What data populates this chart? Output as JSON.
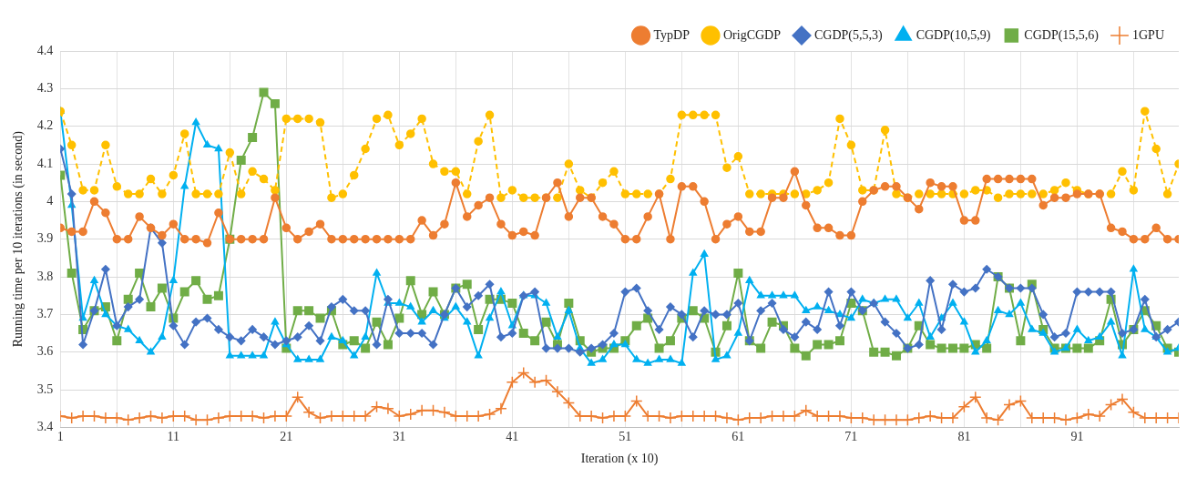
{
  "chart_data": {
    "type": "line",
    "xlabel": "Iteration (x 10)",
    "ylabel": "Running time per 10 iterations (in second)",
    "x": [
      1,
      2,
      3,
      4,
      5,
      6,
      7,
      8,
      9,
      10,
      11,
      12,
      13,
      14,
      15,
      16,
      17,
      18,
      19,
      20,
      21,
      22,
      23,
      24,
      25,
      26,
      27,
      28,
      29,
      30,
      31,
      32,
      33,
      34,
      35,
      36,
      37,
      38,
      39,
      40,
      41,
      42,
      43,
      44,
      45,
      46,
      47,
      48,
      49,
      50,
      51,
      52,
      53,
      54,
      55,
      56,
      57,
      58,
      59,
      60,
      61,
      62,
      63,
      64,
      65,
      66,
      67,
      68,
      69,
      70,
      71,
      72,
      73,
      74,
      75,
      76,
      77,
      78,
      79,
      80,
      81,
      82,
      83,
      84,
      85,
      86,
      87,
      88,
      89,
      90,
      91,
      92,
      93,
      94,
      95,
      96,
      97,
      98,
      99,
      100
    ],
    "xlim": [
      1,
      100
    ],
    "xticks": [
      1,
      {
        "value": 6,
        "label": null
      },
      11,
      {
        "value": 16,
        "label": null
      },
      21,
      {
        "value": 26,
        "label": null
      },
      31,
      {
        "value": 36,
        "label": null
      },
      41,
      {
        "value": 46,
        "label": null
      },
      51,
      {
        "value": 56,
        "label": null
      },
      61,
      {
        "value": 66,
        "label": null
      },
      71,
      {
        "value": 76,
        "label": null
      },
      81,
      {
        "value": 86,
        "label": null
      },
      91,
      {
        "value": 96,
        "label": null
      }
    ],
    "ylim": [
      3.4,
      4.4
    ],
    "yticks": [
      3.4,
      3.5,
      3.6,
      3.7,
      3.8,
      3.9,
      4,
      4.1,
      4.2,
      4.3,
      4.4
    ],
    "grid": true,
    "legend": "top right",
    "series": [
      {
        "name": "TypDP",
        "color": "#ed7d31",
        "marker": "circle",
        "line_style": "solid",
        "values": [
          3.93,
          3.92,
          3.92,
          4.0,
          3.97,
          3.9,
          3.9,
          3.96,
          3.93,
          3.91,
          3.94,
          3.9,
          3.9,
          3.89,
          3.97,
          3.9,
          3.9,
          3.9,
          3.9,
          4.01,
          3.93,
          3.9,
          3.92,
          3.94,
          3.9,
          3.9,
          3.9,
          3.9,
          3.9,
          3.9,
          3.9,
          3.9,
          3.95,
          3.91,
          3.94,
          4.05,
          3.96,
          3.99,
          4.01,
          3.94,
          3.91,
          3.92,
          3.91,
          4.01,
          4.05,
          3.96,
          4.01,
          4.01,
          3.96,
          3.94,
          3.9,
          3.9,
          3.96,
          4.02,
          3.9,
          4.04,
          4.04,
          4.0,
          3.9,
          3.94,
          3.96,
          3.92,
          3.92,
          4.01,
          4.01,
          4.08,
          3.99,
          3.93,
          3.93,
          3.91,
          3.91,
          4.0,
          4.03,
          4.04,
          4.04,
          4.01,
          3.98,
          4.05,
          4.04,
          4.04,
          3.95,
          3.95,
          4.06,
          4.06,
          4.06,
          4.06,
          4.06,
          3.99,
          4.01,
          4.01,
          4.02,
          4.02,
          4.02,
          3.93,
          3.92,
          3.9,
          3.9,
          3.93,
          3.9,
          3.9
        ]
      },
      {
        "name": "OrigCGDP",
        "color": "#ffc000",
        "marker": "circle",
        "line_style": "dashed",
        "values": [
          4.24,
          4.15,
          4.03,
          4.03,
          4.15,
          4.04,
          4.02,
          4.02,
          4.06,
          4.02,
          4.07,
          4.18,
          4.02,
          4.02,
          4.02,
          4.13,
          4.02,
          4.08,
          4.06,
          4.03,
          4.22,
          4.22,
          4.22,
          4.21,
          4.01,
          4.02,
          4.07,
          4.14,
          4.22,
          4.23,
          4.15,
          4.18,
          4.22,
          4.1,
          4.08,
          4.08,
          4.02,
          4.16,
          4.23,
          4.01,
          4.03,
          4.01,
          4.01,
          4.01,
          4.01,
          4.1,
          4.03,
          4.01,
          4.05,
          4.08,
          4.02,
          4.02,
          4.02,
          4.02,
          4.06,
          4.23,
          4.23,
          4.23,
          4.23,
          4.09,
          4.12,
          4.02,
          4.02,
          4.02,
          4.02,
          4.02,
          4.02,
          4.03,
          4.05,
          4.22,
          4.15,
          4.03,
          4.03,
          4.19,
          4.02,
          4.01,
          4.02,
          4.02,
          4.02,
          4.02,
          4.02,
          4.03,
          4.03,
          4.01,
          4.02,
          4.02,
          4.02,
          4.02,
          4.03,
          4.05,
          4.03,
          4.02,
          4.02,
          4.02,
          4.08,
          4.03,
          4.24,
          4.14,
          4.02,
          4.1
        ]
      },
      {
        "name": "CGDP(5,5,3)",
        "color": "#4472c4",
        "marker": "diamond",
        "line_style": "solid",
        "values": [
          4.14,
          4.02,
          3.62,
          3.71,
          3.82,
          3.67,
          3.72,
          3.74,
          3.93,
          3.89,
          3.67,
          3.62,
          3.68,
          3.69,
          3.66,
          3.64,
          3.63,
          3.66,
          3.64,
          3.62,
          3.63,
          3.64,
          3.67,
          3.63,
          3.72,
          3.74,
          3.71,
          3.71,
          3.62,
          3.74,
          3.65,
          3.65,
          3.65,
          3.62,
          3.7,
          3.77,
          3.72,
          3.75,
          3.78,
          3.64,
          3.65,
          3.75,
          3.76,
          3.61,
          3.61,
          3.61,
          3.6,
          3.61,
          3.62,
          3.65,
          3.76,
          3.77,
          3.71,
          3.66,
          3.72,
          3.7,
          3.64,
          3.71,
          3.7,
          3.7,
          3.73,
          3.63,
          3.71,
          3.73,
          3.66,
          3.64,
          3.68,
          3.66,
          3.76,
          3.67,
          3.76,
          3.71,
          3.73,
          3.68,
          3.65,
          3.61,
          3.62,
          3.79,
          3.66,
          3.78,
          3.76,
          3.77,
          3.82,
          3.8,
          3.77,
          3.77,
          3.77,
          3.7,
          3.64,
          3.65,
          3.76,
          3.76,
          3.76,
          3.76,
          3.65,
          3.66,
          3.74,
          3.64,
          3.66,
          3.68
        ]
      },
      {
        "name": "CGDP(10,5,9)",
        "color": "#00b0f0",
        "marker": "triangle",
        "line_style": "solid",
        "values": [
          4.24,
          3.99,
          3.69,
          3.79,
          3.7,
          3.67,
          3.66,
          3.63,
          3.6,
          3.64,
          3.79,
          4.04,
          4.21,
          4.15,
          4.14,
          3.59,
          3.59,
          3.59,
          3.59,
          3.68,
          3.62,
          3.58,
          3.58,
          3.58,
          3.64,
          3.63,
          3.59,
          3.64,
          3.81,
          3.73,
          3.73,
          3.72,
          3.68,
          3.71,
          3.69,
          3.72,
          3.68,
          3.59,
          3.69,
          3.76,
          3.67,
          3.75,
          3.75,
          3.73,
          3.64,
          3.71,
          3.61,
          3.57,
          3.58,
          3.62,
          3.62,
          3.58,
          3.57,
          3.58,
          3.58,
          3.57,
          3.81,
          3.86,
          3.58,
          3.59,
          3.65,
          3.79,
          3.75,
          3.75,
          3.75,
          3.75,
          3.71,
          3.72,
          3.71,
          3.7,
          3.69,
          3.74,
          3.73,
          3.74,
          3.74,
          3.69,
          3.73,
          3.64,
          3.69,
          3.73,
          3.68,
          3.6,
          3.63,
          3.71,
          3.7,
          3.73,
          3.66,
          3.65,
          3.6,
          3.61,
          3.66,
          3.63,
          3.64,
          3.68,
          3.59,
          3.82,
          3.66,
          3.64,
          3.6,
          3.61
        ]
      },
      {
        "name": "CGDP(15,5,6)",
        "color": "#70ad47",
        "marker": "square",
        "line_style": "solid",
        "values": [
          4.07,
          3.81,
          3.66,
          3.71,
          3.72,
          3.63,
          3.74,
          3.81,
          3.72,
          3.77,
          3.69,
          3.76,
          3.79,
          3.74,
          3.75,
          3.9,
          4.11,
          4.17,
          4.29,
          4.26,
          3.61,
          3.71,
          3.71,
          3.69,
          3.71,
          3.62,
          3.63,
          3.61,
          3.68,
          3.62,
          3.69,
          3.79,
          3.7,
          3.76,
          3.7,
          3.77,
          3.78,
          3.66,
          3.74,
          3.74,
          3.73,
          3.65,
          3.63,
          3.68,
          3.62,
          3.73,
          3.63,
          3.6,
          3.61,
          3.61,
          3.63,
          3.67,
          3.69,
          3.61,
          3.63,
          3.69,
          3.71,
          3.69,
          3.6,
          3.67,
          3.81,
          3.63,
          3.61,
          3.68,
          3.67,
          3.61,
          3.59,
          3.62,
          3.62,
          3.63,
          3.73,
          3.71,
          3.6,
          3.6,
          3.59,
          3.61,
          3.67,
          3.62,
          3.61,
          3.61,
          3.61,
          3.62,
          3.61,
          3.8,
          3.77,
          3.63,
          3.78,
          3.66,
          3.61,
          3.61,
          3.61,
          3.61,
          3.63,
          3.74,
          3.62,
          3.66,
          3.71,
          3.67,
          3.61,
          3.6
        ]
      },
      {
        "name": "1GPU",
        "color": "#ed7d31",
        "marker": "cross",
        "line_style": "solid",
        "values": [
          3.43,
          3.425,
          3.43,
          3.43,
          3.425,
          3.425,
          3.42,
          3.425,
          3.43,
          3.425,
          3.43,
          3.43,
          3.42,
          3.42,
          3.425,
          3.43,
          3.43,
          3.43,
          3.425,
          3.43,
          3.43,
          3.48,
          3.44,
          3.425,
          3.43,
          3.43,
          3.43,
          3.43,
          3.455,
          3.45,
          3.43,
          3.435,
          3.445,
          3.445,
          3.44,
          3.43,
          3.43,
          3.43,
          3.435,
          3.45,
          3.52,
          3.545,
          3.52,
          3.525,
          3.495,
          3.465,
          3.43,
          3.43,
          3.425,
          3.43,
          3.43,
          3.47,
          3.43,
          3.43,
          3.425,
          3.43,
          3.43,
          3.43,
          3.43,
          3.425,
          3.42,
          3.425,
          3.425,
          3.43,
          3.43,
          3.43,
          3.445,
          3.43,
          3.43,
          3.43,
          3.425,
          3.425,
          3.42,
          3.42,
          3.42,
          3.42,
          3.425,
          3.43,
          3.425,
          3.425,
          3.455,
          3.48,
          3.425,
          3.42,
          3.46,
          3.47,
          3.425,
          3.425,
          3.425,
          3.42,
          3.425,
          3.435,
          3.43,
          3.46,
          3.475,
          3.44,
          3.425,
          3.425,
          3.425,
          3.425
        ]
      }
    ]
  }
}
